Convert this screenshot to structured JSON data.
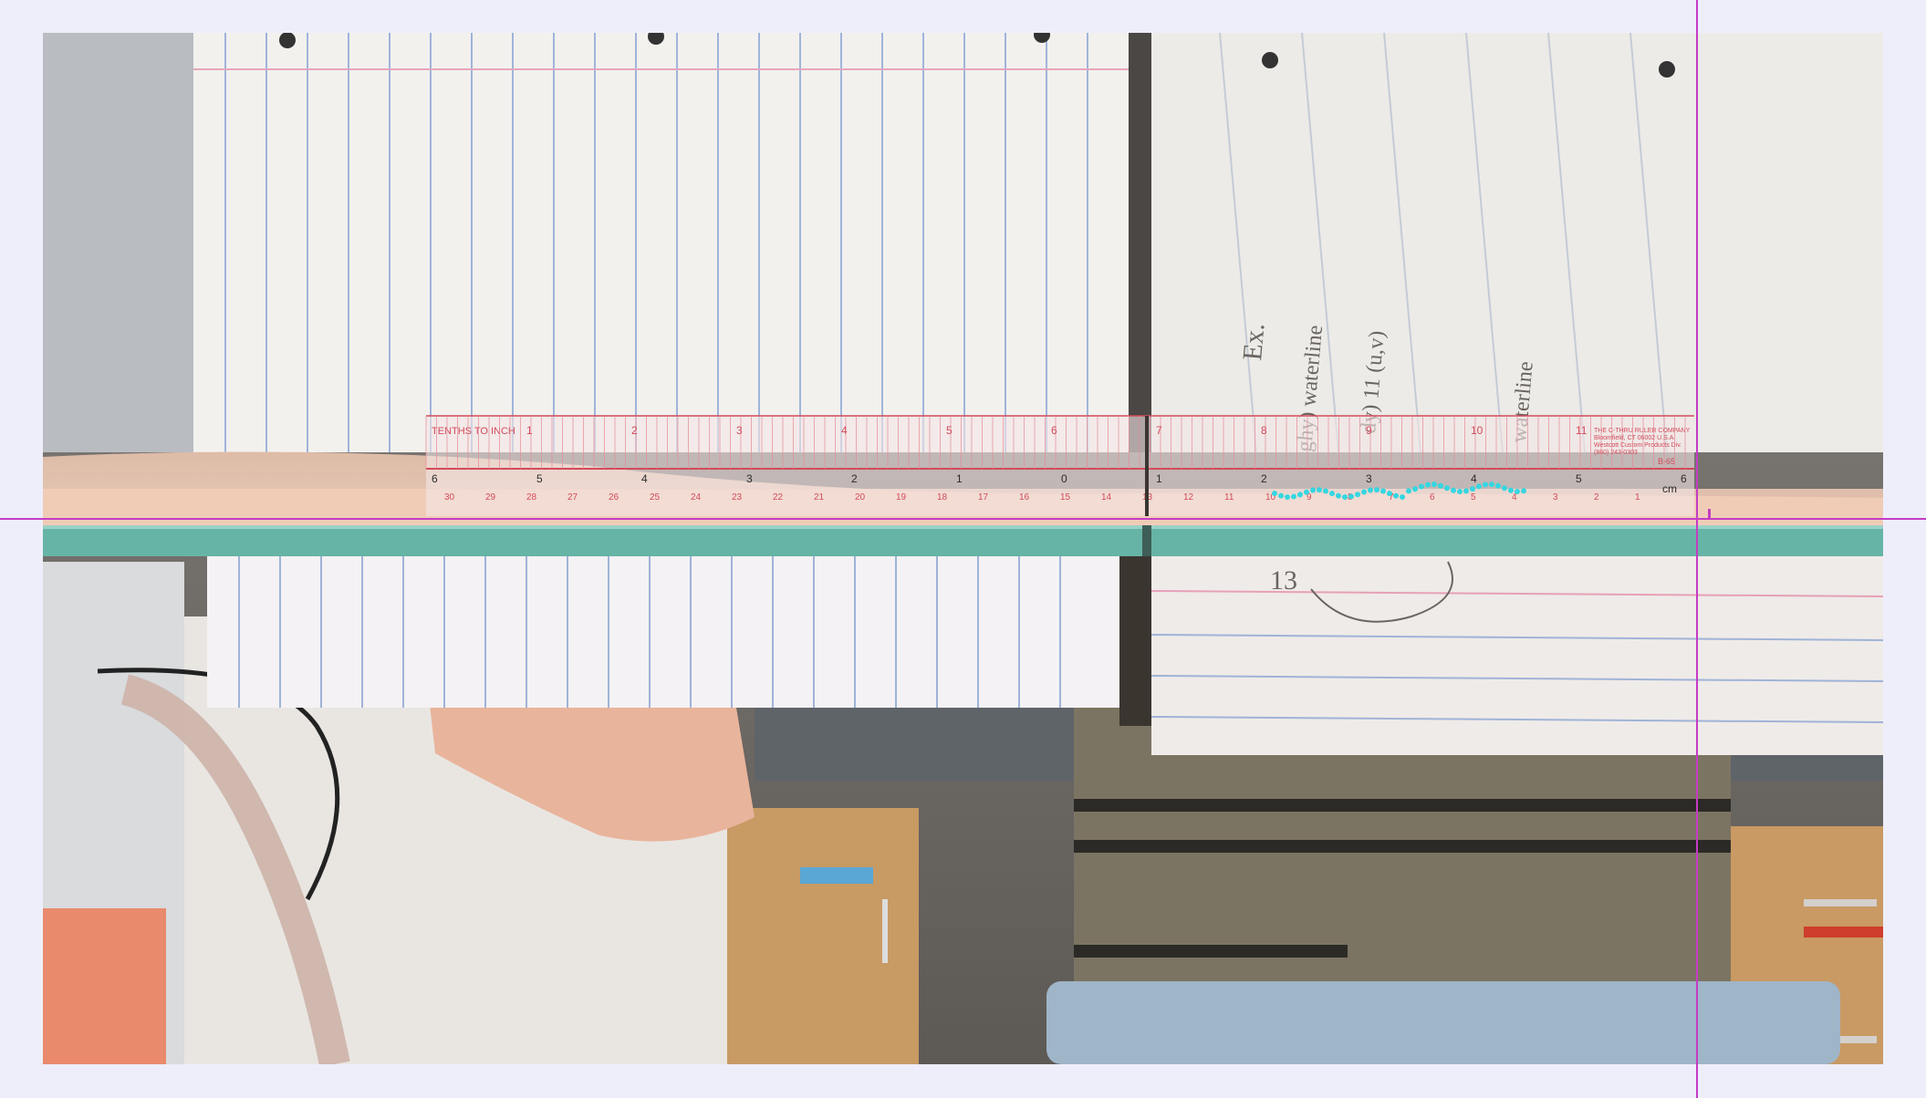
{
  "photo": {
    "ruler": {
      "top_label": "TENTHS TO INCH",
      "maker_lines": [
        "THE C-THRU RULER COMPANY",
        "Bloomfield, CT 06002 U.S.A.",
        "Westcott Custom Products Div.",
        "(860) 243-0303"
      ],
      "code": "B-65",
      "inch_numbers": [
        "1",
        "2",
        "3",
        "4",
        "5",
        "6",
        "7",
        "8",
        "9",
        "10",
        "11"
      ],
      "cm_left_numbers": [
        "6",
        "5",
        "4",
        "3",
        "2",
        "1",
        "0"
      ],
      "cm_right_numbers": [
        "1",
        "2",
        "3",
        "4",
        "5",
        "6"
      ],
      "cm_label": "cm",
      "mm_numbers": [
        "30",
        "29",
        "28",
        "27",
        "26",
        "25",
        "24",
        "23",
        "22",
        "21",
        "20",
        "19",
        "18",
        "17",
        "16",
        "15",
        "14",
        "13",
        "12",
        "11",
        "10",
        "9",
        "8",
        "7",
        "6",
        "5",
        "4",
        "3",
        "2",
        "1"
      ]
    },
    "notes": {
      "ex": "Ex.",
      "curve_1": "ghy) waterline",
      "curve_2": "dy) 11 (u,v)",
      "waterline": "waterline",
      "number": "13"
    }
  },
  "colors": {
    "crosshair": "#c43cc4",
    "water_band": "#66b4a6",
    "ruler_red": "#d24a5a",
    "trace_cyan": "#35d6e0"
  }
}
